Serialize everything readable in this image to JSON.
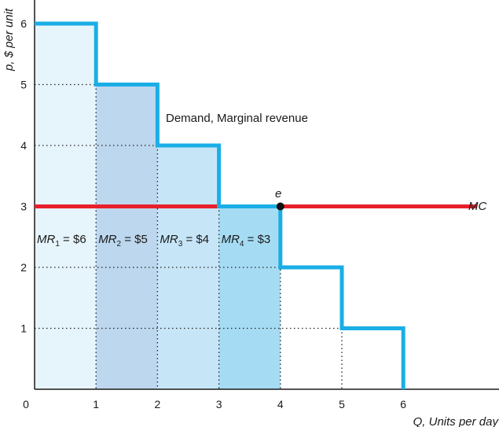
{
  "chart_data": {
    "type": "line",
    "title": "",
    "xlabel": "Q, Units per day",
    "ylabel": "p, $ per unit",
    "xlim": [
      0,
      7.5
    ],
    "ylim": [
      0,
      6.3
    ],
    "x_ticks": [
      "0",
      "1",
      "2",
      "3",
      "4",
      "5",
      "6"
    ],
    "y_ticks": [
      "1",
      "2",
      "3",
      "4",
      "5",
      "6"
    ],
    "series": [
      {
        "name": "Demand, Marginal revenue",
        "color": "#1aaee6",
        "shape": "step",
        "points": [
          [
            0,
            6
          ],
          [
            1,
            6
          ],
          [
            1,
            5
          ],
          [
            2,
            5
          ],
          [
            2,
            4
          ],
          [
            3,
            4
          ],
          [
            3,
            3
          ],
          [
            4,
            3
          ],
          [
            4,
            2
          ],
          [
            5,
            2
          ],
          [
            5,
            1
          ],
          [
            6,
            1
          ],
          [
            6,
            0
          ]
        ]
      },
      {
        "name": "MC",
        "color": "#e8202a",
        "points": [
          [
            0,
            3
          ],
          [
            7.2,
            3
          ]
        ]
      }
    ],
    "shaded_units": [
      {
        "x0": 0,
        "x1": 1,
        "height": 6,
        "color": "#e6f4fb",
        "label_prefix": "MR",
        "label_sub": "1",
        "label_value": " = $6"
      },
      {
        "x0": 1,
        "x1": 2,
        "height": 5,
        "color": "#bdd7ee",
        "label_prefix": "MR",
        "label_sub": "2",
        "label_value": " = $5"
      },
      {
        "x0": 2,
        "x1": 3,
        "height": 4,
        "color": "#c6e6f8",
        "label_prefix": "MR",
        "label_sub": "3",
        "label_value": " = $4"
      },
      {
        "x0": 3,
        "x1": 4,
        "height": 3,
        "color": "#a5dcf4",
        "label_prefix": "MR",
        "label_sub": "4",
        "label_value": " = $3"
      }
    ],
    "point": {
      "label": "e",
      "x": 4,
      "y": 3
    },
    "annotations": {
      "demand_label": "Demand, Marginal revenue",
      "mc_label": "MC"
    },
    "grid": "dotted reference lines"
  }
}
